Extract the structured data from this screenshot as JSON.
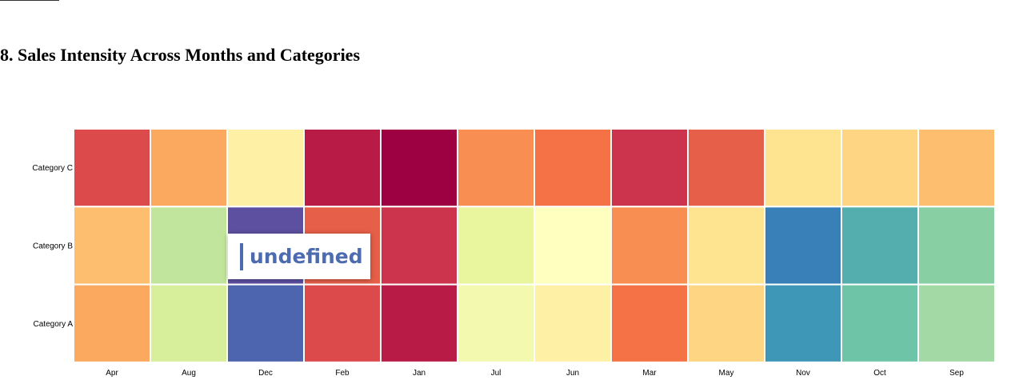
{
  "page": {
    "heading": "8. Sales Intensity Across Months and Categories"
  },
  "tooltip": {
    "text": "undefined"
  },
  "chart_data": {
    "type": "heatmap",
    "title": "",
    "xlabel": "",
    "ylabel": "",
    "x": [
      "Apr",
      "Aug",
      "Dec",
      "Feb",
      "Jan",
      "Jul",
      "Jun",
      "Mar",
      "May",
      "Nov",
      "Oct",
      "Sep"
    ],
    "y": [
      "Category C",
      "Category B",
      "Category A"
    ],
    "color_scale": "Spectral (reversed: high = dark red, low = dark blue)",
    "value_range": [
      0,
      1
    ],
    "values": [
      [
        0.85,
        0.7,
        0.53,
        0.93,
        0.99,
        0.73,
        0.77,
        0.89,
        0.81,
        0.57,
        0.62,
        0.66
      ],
      [
        0.66,
        0.35,
        0.03,
        0.8,
        0.89,
        0.42,
        0.5,
        0.73,
        0.58,
        0.1,
        0.21,
        0.28
      ],
      [
        0.7,
        0.4,
        0.07,
        0.85,
        0.93,
        0.45,
        0.54,
        0.77,
        0.62,
        0.14,
        0.25,
        0.31
      ]
    ],
    "cell_colors": [
      [
        "#dd4a4c",
        "#fba95f",
        "#fef1a6",
        "#b71b46",
        "#9e0142",
        "#f98e52",
        "#f47245",
        "#cc334c",
        "#e65f48",
        "#fee391",
        "#fed582",
        "#fdbe6f"
      ],
      [
        "#fdbe6f",
        "#c1e59c",
        "#5e50a1",
        "#e65f48",
        "#cc334c",
        "#e9f69d",
        "#ffffbf",
        "#f98e52",
        "#fee391",
        "#3a80b8",
        "#53aead",
        "#89cfa4"
      ],
      [
        "#fba95f",
        "#d7ef9b",
        "#4c65ae",
        "#dd4a4c",
        "#b71b46",
        "#f3fab0",
        "#fef1a6",
        "#f47245",
        "#fed582",
        "#3f97b7",
        "#6ec4a7",
        "#a2d9a4"
      ]
    ],
    "grid": false,
    "legend": "none"
  }
}
